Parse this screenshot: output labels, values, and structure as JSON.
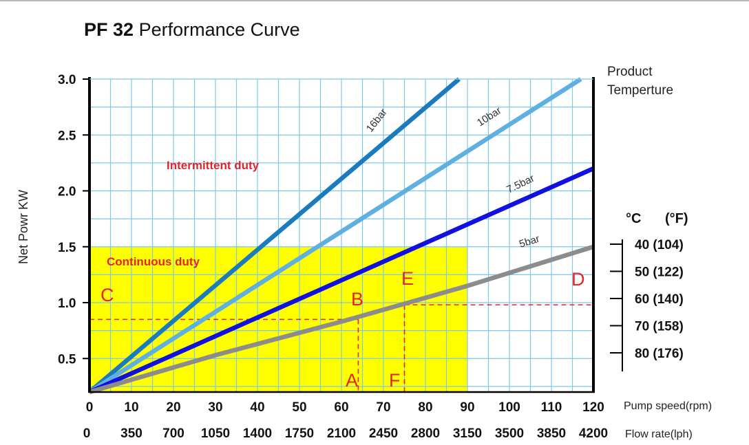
{
  "title": {
    "model": "PF 32",
    "text": "Performance Curve"
  },
  "legend_title": [
    "Product",
    "Temperture"
  ],
  "chart_data": {
    "type": "line",
    "title": "PF 32 Performance Curve",
    "ylabel": "Net Powr KW",
    "xlabel": "Pump speed(rpm)",
    "x2label": "Flow rate(lph)",
    "xlim": [
      0,
      120
    ],
    "ylim": [
      0.2,
      3.0
    ],
    "y_ticks": [
      0.5,
      1.0,
      1.5,
      2.0,
      2.5,
      3.0
    ],
    "y_tick_labels": [
      "0.5",
      "1.0",
      "1.5",
      "2.0",
      "2.5",
      "3.0"
    ],
    "x_ticks": [
      "0",
      "10",
      "20",
      "30",
      "40",
      "50",
      "60",
      "70",
      "80",
      "90",
      "100",
      "110",
      "120"
    ],
    "x2_ticks": [
      "0",
      "350",
      "700",
      "1050",
      "1400",
      "1750",
      "2100",
      "2450",
      "2800",
      "3150",
      "3500",
      "3850",
      "4200"
    ],
    "grid": true,
    "series": [
      {
        "name": "16bar",
        "label": "16bar",
        "color": "#1a7bbf",
        "x": [
          0,
          88
        ],
        "y": [
          0.2,
          3.0
        ]
      },
      {
        "name": "10bar",
        "label": "10bar",
        "color": "#5fb0e0",
        "x": [
          0,
          117
        ],
        "y": [
          0.2,
          3.0
        ]
      },
      {
        "name": "7.5bar",
        "label": "7.5bar",
        "color": "#1010e0",
        "x": [
          0,
          120
        ],
        "y": [
          0.2,
          2.2
        ]
      },
      {
        "name": "5bar",
        "label": "5bar",
        "color": "#8c8c8c",
        "x": [
          0,
          30,
          60,
          90,
          120
        ],
        "y": [
          0.2,
          0.53,
          0.83,
          1.15,
          1.5
        ]
      }
    ],
    "regions": [
      {
        "label": "Continuous duty",
        "color": "#ffff00",
        "x": [
          0,
          90
        ],
        "y": [
          0.2,
          1.5
        ]
      },
      {
        "label": "Intermittent duty",
        "color": "#ffffff",
        "x": [
          0,
          120
        ],
        "y": [
          0.2,
          3.0
        ]
      }
    ],
    "annotations": [
      {
        "label": "A",
        "x": 63,
        "y": 0.2
      },
      {
        "label": "B",
        "x": 64,
        "y": 0.85
      },
      {
        "label": "C",
        "x": 0,
        "y": 0.85
      },
      {
        "label": "D",
        "x": 120,
        "y": 0.98
      },
      {
        "label": "E",
        "x": 75,
        "y": 0.98
      },
      {
        "label": "F",
        "x": 74,
        "y": 0.2
      }
    ],
    "guides": [
      {
        "from": [
          0,
          0.85
        ],
        "to": [
          64,
          0.85
        ]
      },
      {
        "from": [
          64,
          0.85
        ],
        "to": [
          64,
          0.2
        ]
      },
      {
        "from": [
          75,
          0.98
        ],
        "to": [
          120,
          0.98
        ]
      },
      {
        "from": [
          75,
          0.98
        ],
        "to": [
          75,
          0.2
        ]
      }
    ],
    "temperature_scale": {
      "header_c": "°C",
      "header_f": "(°F)",
      "ticks": [
        "40 (104)",
        "50 (122)",
        "60 (140)",
        "70 (158)",
        "80 (176)"
      ],
      "y": [
        1.5,
        1.2,
        0.9,
        0.6,
        0.3
      ]
    }
  }
}
